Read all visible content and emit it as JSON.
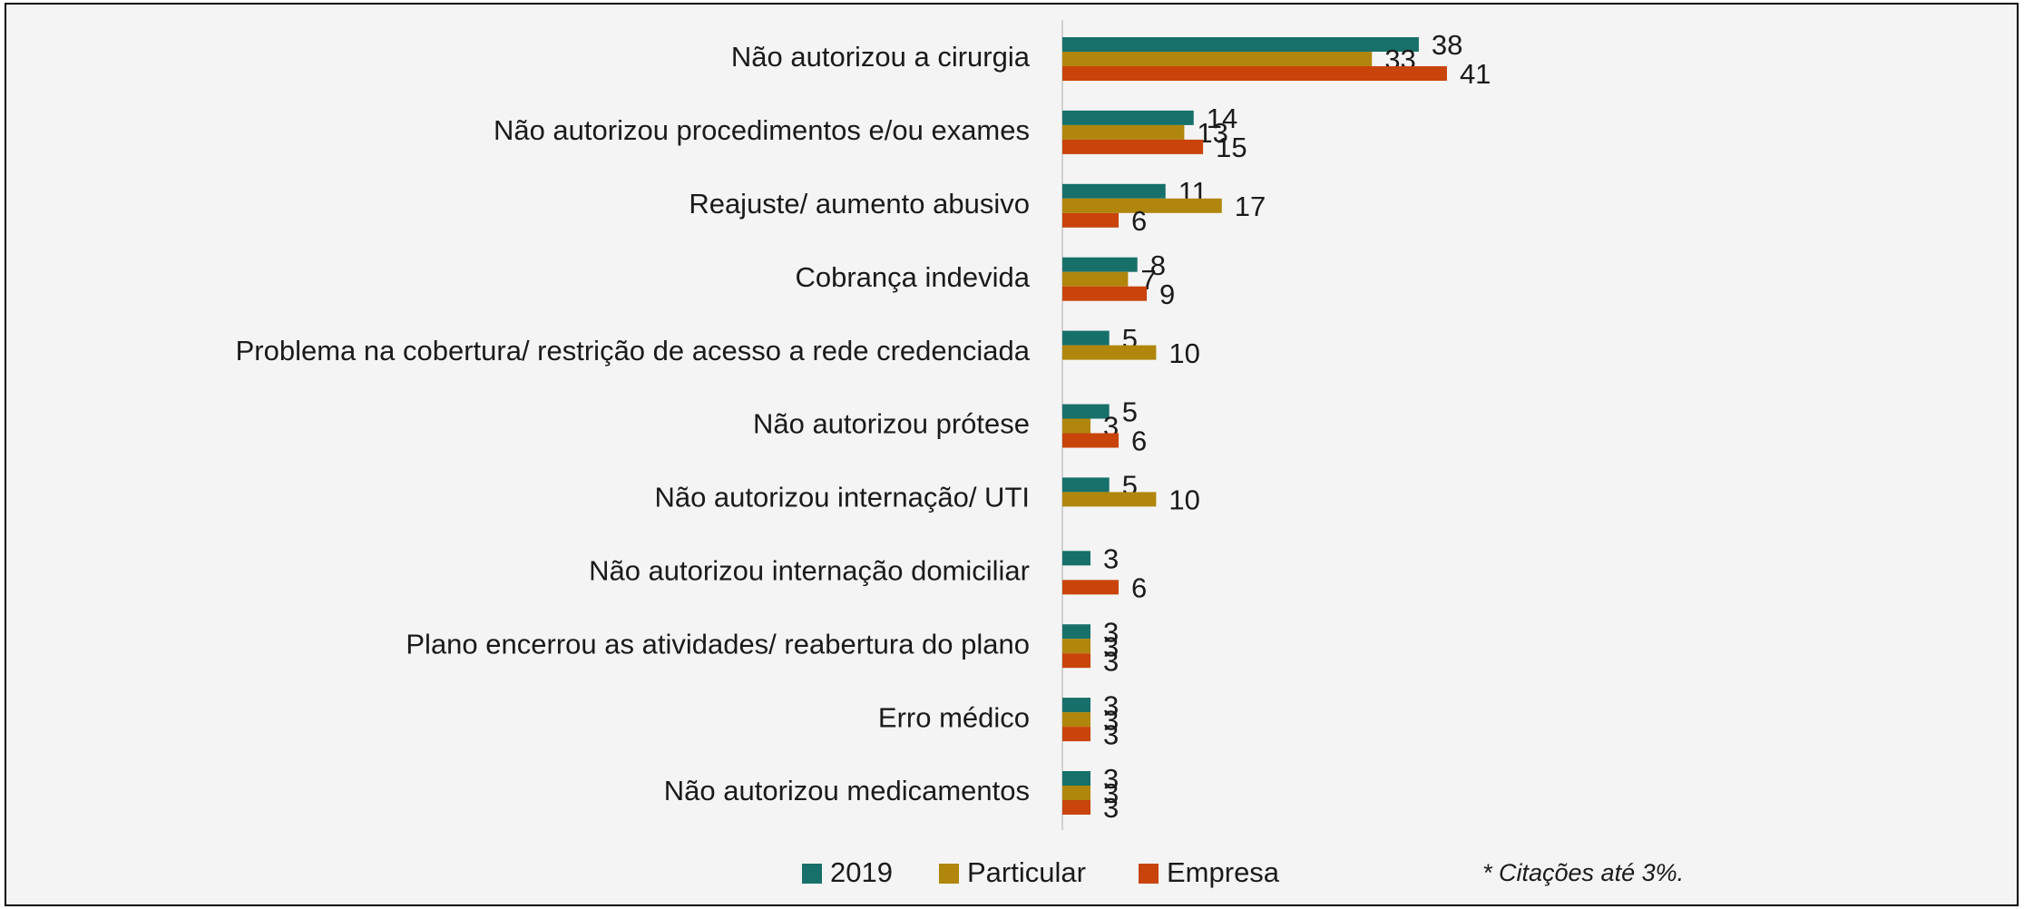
{
  "chart_data": {
    "type": "bar",
    "orientation": "horizontal",
    "categories": [
      "Não autorizou a cirurgia",
      "Não autorizou procedimentos e/ou exames",
      "Reajuste/ aumento abusivo",
      "Cobrança indevida",
      "Problema na cobertura/ restrição de acesso a rede credenciada",
      "Não autorizou prótese",
      "Não autorizou internação/ UTI",
      "Não autorizou internação domiciliar",
      "Plano encerrou as atividades/ reabertura do plano",
      "Erro médico",
      "Não autorizou medicamentos"
    ],
    "series": [
      {
        "name": "2019",
        "color": "#17706a",
        "values": [
          38,
          14,
          11,
          8,
          5,
          5,
          5,
          3,
          3,
          3,
          3
        ]
      },
      {
        "name": "Particular",
        "color": "#b0860c",
        "values": [
          33,
          13,
          17,
          7,
          10,
          3,
          10,
          null,
          3,
          3,
          3
        ]
      },
      {
        "name": "Empresa",
        "color": "#c8440a",
        "values": [
          41,
          15,
          6,
          9,
          null,
          6,
          null,
          6,
          3,
          3,
          3
        ]
      }
    ],
    "legend": "bottom",
    "annotation": "* Citações até 3%."
  }
}
